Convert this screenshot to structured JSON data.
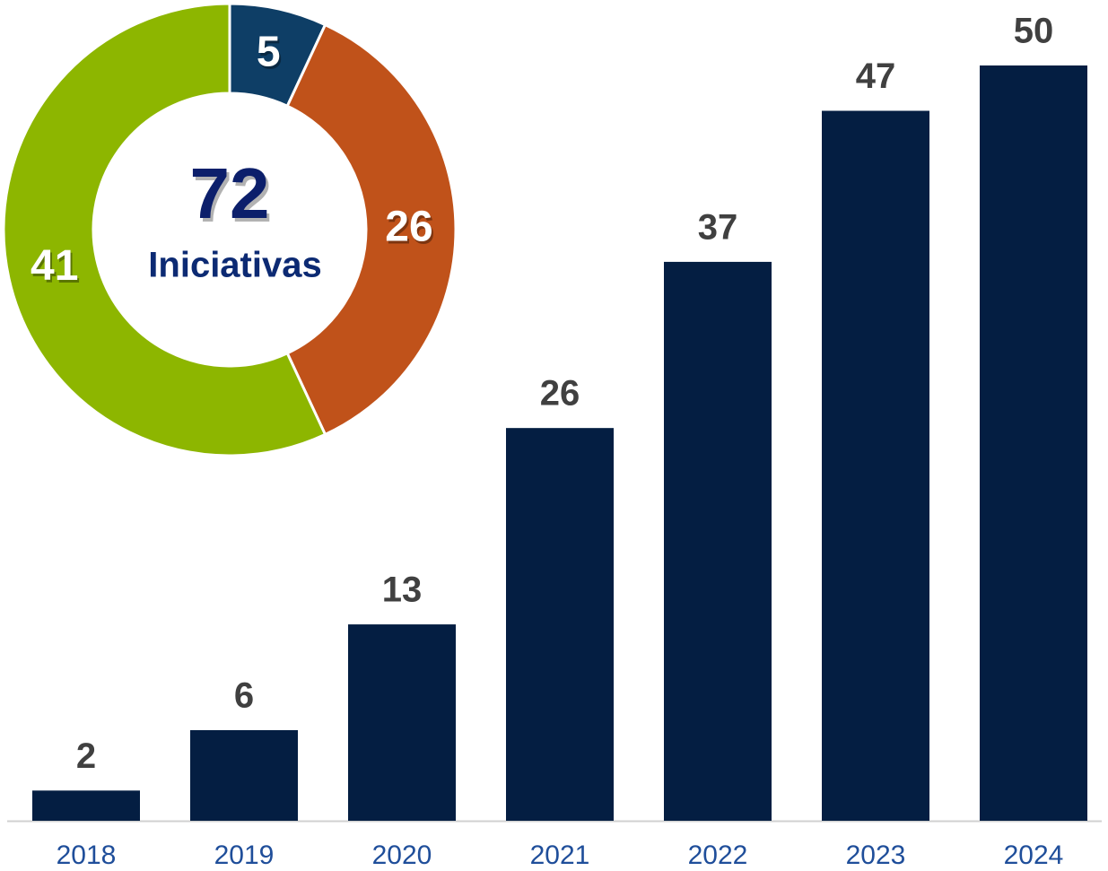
{
  "chart_data": [
    {
      "type": "bar",
      "categories": [
        "2018",
        "2019",
        "2020",
        "2021",
        "2022",
        "2023",
        "2024"
      ],
      "values": [
        2,
        6,
        13,
        26,
        37,
        47,
        50
      ],
      "color": "#041e42"
    },
    {
      "type": "pie",
      "values": [
        5,
        26,
        41
      ],
      "colors": [
        "#0e3e66",
        "#c0521a",
        "#8db600"
      ],
      "total": 72,
      "total_label": "Iniciativas"
    }
  ]
}
